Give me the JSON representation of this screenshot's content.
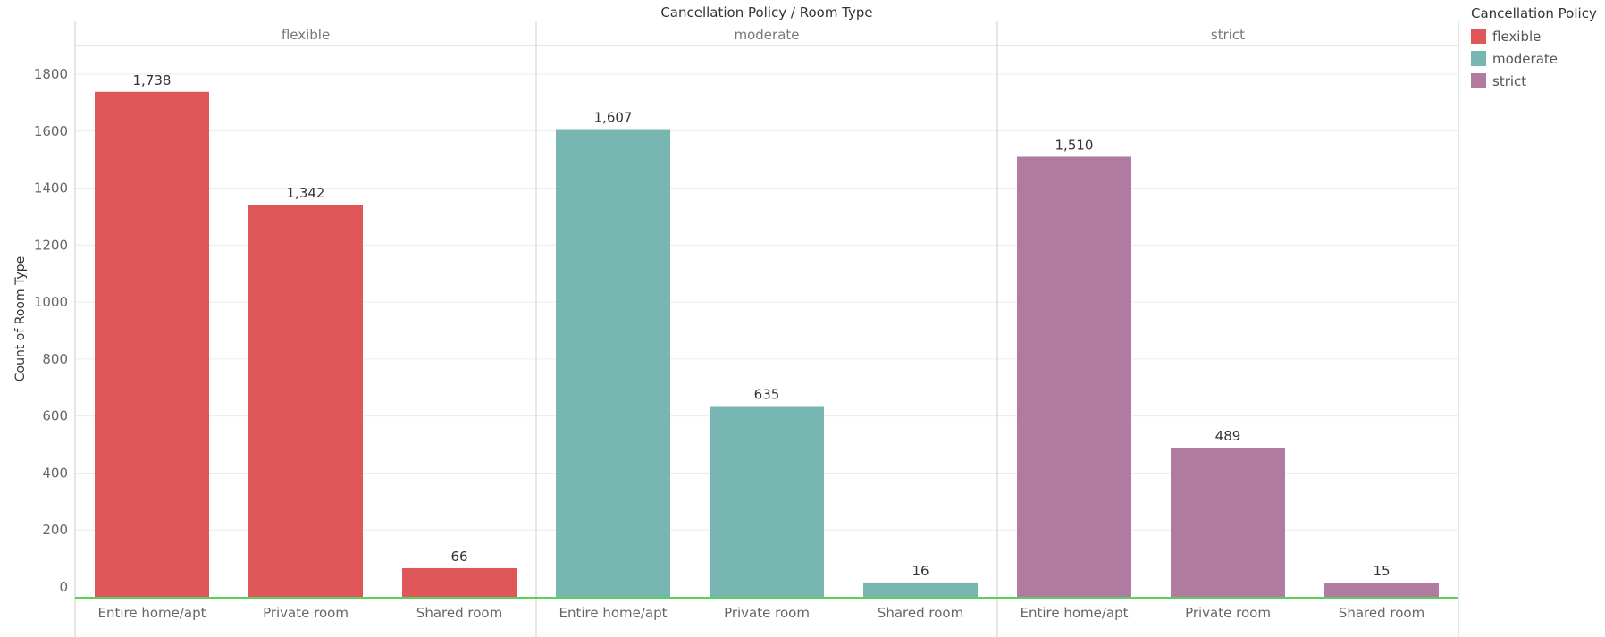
{
  "chart_data": {
    "type": "bar",
    "title": "Cancellation Policy  /  Room Type",
    "ylabel": "Count of Room Type",
    "xlabel": "",
    "ylim": [
      -30,
      1900
    ],
    "yticks": [
      0,
      200,
      400,
      600,
      800,
      1000,
      1200,
      1400,
      1600,
      1800
    ],
    "grid": true,
    "legend_position": "top-right",
    "legend_title": "Cancellation Policy",
    "panels": [
      {
        "name": "flexible",
        "color": "#e05759",
        "categories": [
          "Entire home/apt",
          "Private room",
          "Shared room"
        ],
        "values": [
          1738,
          1342,
          66
        ],
        "value_labels": [
          "1,738",
          "1,342",
          "66"
        ]
      },
      {
        "name": "moderate",
        "color": "#78b6b1",
        "categories": [
          "Entire home/apt",
          "Private room",
          "Shared room"
        ],
        "values": [
          1607,
          635,
          16
        ],
        "value_labels": [
          "1,607",
          "635",
          "16"
        ]
      },
      {
        "name": "strict",
        "color": "#b07aa1",
        "categories": [
          "Entire home/apt",
          "Private room",
          "Shared room"
        ],
        "values": [
          1510,
          489,
          15
        ],
        "value_labels": [
          "1,510",
          "489",
          "15"
        ]
      }
    ],
    "legend": [
      {
        "label": "flexible",
        "color": "#e05759"
      },
      {
        "label": "moderate",
        "color": "#78b6b1"
      },
      {
        "label": "strict",
        "color": "#b07aa1"
      }
    ],
    "reference_line_color": "#5bd05b"
  }
}
